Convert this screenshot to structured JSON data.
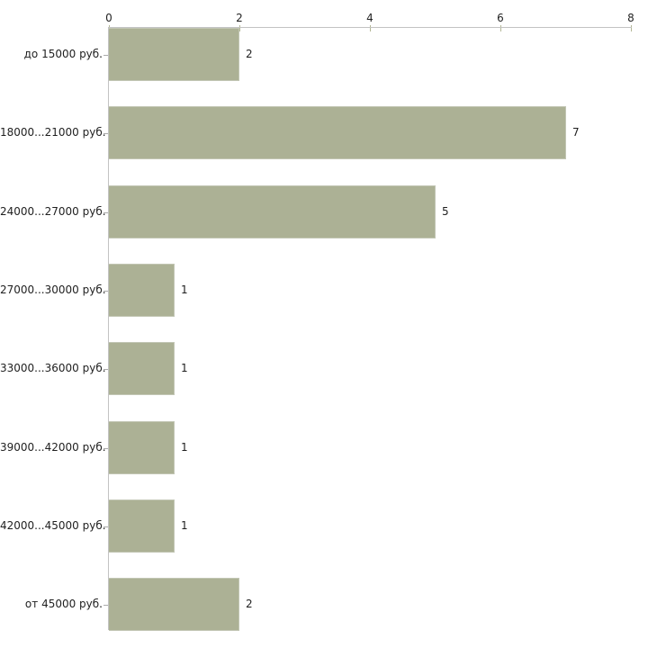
{
  "chart_data": {
    "type": "bar",
    "orientation": "horizontal",
    "title": "",
    "xlabel": "",
    "ylabel": "",
    "categories": [
      "до 15000 руб.",
      "18000...21000 руб.",
      "24000...27000 руб.",
      "27000...30000 руб.",
      "33000...36000 руб.",
      "39000...42000 руб.",
      "42000...45000 руб.",
      "от 45000 руб."
    ],
    "values": [
      2,
      7,
      5,
      1,
      1,
      1,
      1,
      2
    ],
    "x_ticks": [
      0,
      2,
      4,
      6,
      8
    ],
    "xlim": [
      0,
      8
    ],
    "grid": false,
    "legend": false,
    "axis_position": "top",
    "value_labels_shown": true,
    "colors": {
      "bar_fill": "#acb195",
      "bar_edge": "#c2c6b4",
      "axis_line": "#c3c3c3",
      "tick_mark": "#b3b795",
      "category_tick": "#ababab",
      "label_text": "#1f1f1f",
      "background": "#ffffff"
    }
  }
}
